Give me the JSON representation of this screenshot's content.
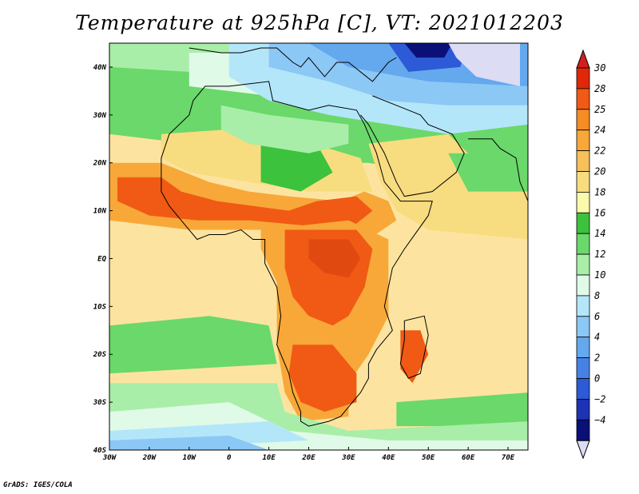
{
  "title": "Temperature at 925hPa [C], VT: 2021012203",
  "credit": "GrADS: IGES/COLA",
  "map": {
    "lon_range": [
      -30,
      75
    ],
    "lat_range": [
      -40,
      45
    ],
    "lon_ticks": [
      {
        "value": -30,
        "label": "30W"
      },
      {
        "value": -20,
        "label": "20W"
      },
      {
        "value": -10,
        "label": "10W"
      },
      {
        "value": 0,
        "label": "0"
      },
      {
        "value": 10,
        "label": "10E"
      },
      {
        "value": 20,
        "label": "20E"
      },
      {
        "value": 30,
        "label": "30E"
      },
      {
        "value": 40,
        "label": "40E"
      },
      {
        "value": 50,
        "label": "50E"
      },
      {
        "value": 60,
        "label": "60E"
      },
      {
        "value": 70,
        "label": "70E"
      }
    ],
    "lat_ticks": [
      {
        "value": 40,
        "label": "40N"
      },
      {
        "value": 30,
        "label": "30N"
      },
      {
        "value": 20,
        "label": "20N"
      },
      {
        "value": 10,
        "label": "10N"
      },
      {
        "value": 0,
        "label": "EQ"
      },
      {
        "value": -10,
        "label": "10S"
      },
      {
        "value": -20,
        "label": "20S"
      },
      {
        "value": -30,
        "label": "30S"
      },
      {
        "value": -40,
        "label": "40S"
      }
    ]
  },
  "colorbar": {
    "levels": [
      {
        "label": "30",
        "color": "#e02808"
      },
      {
        "label": "28",
        "color": "#f05a14"
      },
      {
        "label": "25",
        "color": "#f58c24"
      },
      {
        "label": "24",
        "color": "#f8a838"
      },
      {
        "label": "22",
        "color": "#f8c05a"
      },
      {
        "label": "20",
        "color": "#f8dc80"
      },
      {
        "label": "18",
        "color": "#fafaaa"
      },
      {
        "label": "16",
        "color": "#3cc23c"
      },
      {
        "label": "14",
        "color": "#6ad86a"
      },
      {
        "label": "12",
        "color": "#a8eea8"
      },
      {
        "label": "10",
        "color": "#e0fae8"
      },
      {
        "label": "8",
        "color": "#b4e6fa"
      },
      {
        "label": "6",
        "color": "#8cc8f5"
      },
      {
        "label": "4",
        "color": "#64a8ee"
      },
      {
        "label": "2",
        "color": "#4682e6"
      },
      {
        "label": "0",
        "color": "#2d5ad7"
      },
      {
        "label": "−2",
        "color": "#1e32b4"
      },
      {
        "label": "−4",
        "color": "#0a1078"
      }
    ],
    "top_color": "#d21e1e",
    "bottom_color": "#dcdcf5",
    "regions": {
      "land_hot": "#f05a14",
      "land_hotter": "#e04a10",
      "land_warm": "#f8a838",
      "sahara": "#f8dc80",
      "cool_green": "#6ad86a",
      "green_band": "#3cc23c",
      "pale_green": "#a8eea8",
      "cyan": "#e0fae8",
      "light_blue": "#b4e6fa",
      "mid_blue": "#8cc8f5",
      "blue": "#64a8ee",
      "deep_blue": "#2d5ad7",
      "navy": "#0a1078",
      "cold_lilac": "#dcdcf5",
      "ocean_yellow": "#fce4a0",
      "ocean_south": "#fafaaa"
    }
  }
}
